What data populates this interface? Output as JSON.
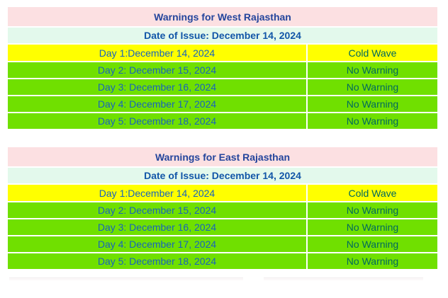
{
  "colors": {
    "header_bg": "#fce0e2",
    "date_bg": "#e3f9ec",
    "day1_bg": "#ffff00",
    "nowarn_bg": "#70e000",
    "title_text": "#24459c",
    "date_text": "#1256a8",
    "day_text": "#1763be",
    "warning_text": "#00695e",
    "separator": "#ffffff"
  },
  "tables": [
    {
      "title": "Warnings for West Rajasthan",
      "date_of_issue": "Date of Issue: December 14, 2024",
      "rows": [
        {
          "day": "Day 1:December 14, 2024",
          "warning": "Cold Wave"
        },
        {
          "day": "Day 2: December 15, 2024",
          "warning": "No Warning"
        },
        {
          "day": "Day 3: December 16, 2024",
          "warning": "No Warning"
        },
        {
          "day": "Day 4: December 17, 2024",
          "warning": "No Warning"
        },
        {
          "day": "Day 5: December 18, 2024",
          "warning": "No Warning"
        }
      ]
    },
    {
      "title": "Warnings for East Rajasthan",
      "date_of_issue": "Date of Issue: December 14, 2024",
      "rows": [
        {
          "day": "Day 1:December 14, 2024",
          "warning": "Cold Wave"
        },
        {
          "day": "Day 2: December 15, 2024",
          "warning": "No Warning"
        },
        {
          "day": "Day 3: December 16, 2024",
          "warning": "No Warning"
        },
        {
          "day": "Day 4: December 17, 2024",
          "warning": "No Warning"
        },
        {
          "day": "Day 5: December 18, 2024",
          "warning": "No Warning"
        }
      ]
    }
  ]
}
